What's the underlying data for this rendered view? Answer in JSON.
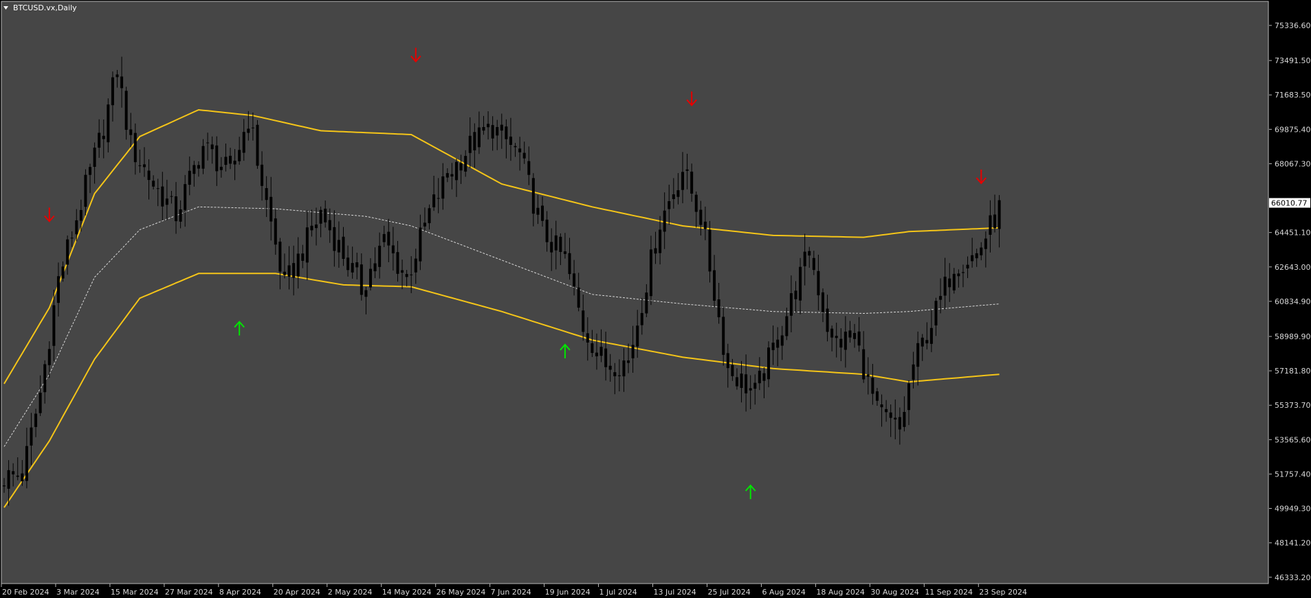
{
  "window": {
    "title": "BTCUSD.vx,Daily",
    "colors": {
      "background": "#000000",
      "plot_area": "#464646",
      "axis_text": "#d8d8d8",
      "candle": "#000000",
      "band_line": "#f5c518",
      "middle_line": "#d8d8d8",
      "buy_arrow": "#00e600",
      "sell_arrow": "#e60000",
      "current_price_tag": "#ffffff"
    }
  },
  "chart_data": {
    "type": "candlestick",
    "symbol": "BTCUSD.vx",
    "timeframe": "Daily",
    "current_price": "66010.77",
    "price_axis_ticks": [
      "75336.60",
      "73491.50",
      "71683.50",
      "69875.40",
      "68067.30",
      "64451.10",
      "62643.00",
      "60834.90",
      "58989.90",
      "57181.80",
      "55373.70",
      "53565.60",
      "51757.40",
      "49949.30",
      "48141.20",
      "46333.20"
    ],
    "time_axis_labels": [
      "20 Feb 2024",
      "3 Mar 2024",
      "15 Mar 2024",
      "27 Mar 2024",
      "8 Apr 2024",
      "20 Apr 2024",
      "2 May 2024",
      "14 May 2024",
      "26 May 2024",
      "7 Jun 2024",
      "19 Jun 2024",
      "1 Jul 2024",
      "13 Jul 2024",
      "25 Jul 2024",
      "6 Aug 2024",
      "18 Aug 2024",
      "30 Aug 2024",
      "11 Sep 2024",
      "23 Sep 2024"
    ],
    "ylim": [
      46000,
      76600
    ],
    "bar_count": 221,
    "close_anchors": [
      [
        0,
        51600
      ],
      [
        4,
        51700
      ],
      [
        8,
        56000
      ],
      [
        12,
        62000
      ],
      [
        18,
        66800
      ],
      [
        22,
        70000
      ],
      [
        25,
        73000
      ],
      [
        28,
        69000
      ],
      [
        33,
        67000
      ],
      [
        38,
        65400
      ],
      [
        44,
        69000
      ],
      [
        50,
        67500
      ],
      [
        54,
        70500
      ],
      [
        58,
        66000
      ],
      [
        62,
        61600
      ],
      [
        70,
        65500
      ],
      [
        75,
        63300
      ],
      [
        79,
        61500
      ],
      [
        84,
        64000
      ],
      [
        89,
        62000
      ],
      [
        94,
        65500
      ],
      [
        98,
        67400
      ],
      [
        103,
        69000
      ],
      [
        108,
        70000
      ],
      [
        114,
        68500
      ],
      [
        119,
        64500
      ],
      [
        124,
        63000
      ],
      [
        128,
        59500
      ],
      [
        133,
        57500
      ],
      [
        138,
        57700
      ],
      [
        145,
        65000
      ],
      [
        150,
        67800
      ],
      [
        154,
        65300
      ],
      [
        160,
        57300
      ],
      [
        166,
        56000
      ],
      [
        172,
        59500
      ],
      [
        178,
        63500
      ],
      [
        183,
        58600
      ],
      [
        188,
        59000
      ],
      [
        193,
        55000
      ],
      [
        198,
        54000
      ],
      [
        201,
        57500
      ],
      [
        206,
        60300
      ],
      [
        210,
        62800
      ],
      [
        215,
        63300
      ],
      [
        220,
        65700
      ]
    ],
    "indicators": [
      {
        "type": "band",
        "role": "upper",
        "anchors": [
          [
            0,
            56500
          ],
          [
            10,
            60500
          ],
          [
            20,
            66500
          ],
          [
            30,
            69500
          ],
          [
            43,
            70900
          ],
          [
            55,
            70600
          ],
          [
            70,
            69800
          ],
          [
            90,
            69600
          ],
          [
            110,
            67000
          ],
          [
            130,
            65800
          ],
          [
            150,
            64800
          ],
          [
            170,
            64300
          ],
          [
            190,
            64200
          ],
          [
            200,
            64500
          ],
          [
            220,
            64700
          ]
        ]
      },
      {
        "type": "band",
        "role": "lower",
        "anchors": [
          [
            0,
            50000
          ],
          [
            10,
            53500
          ],
          [
            20,
            57800
          ],
          [
            30,
            61000
          ],
          [
            43,
            62300
          ],
          [
            60,
            62300
          ],
          [
            75,
            61700
          ],
          [
            90,
            61600
          ],
          [
            110,
            60300
          ],
          [
            130,
            58800
          ],
          [
            150,
            57900
          ],
          [
            170,
            57300
          ],
          [
            190,
            57000
          ],
          [
            200,
            56600
          ],
          [
            220,
            57000
          ]
        ]
      },
      {
        "type": "middle",
        "anchors": [
          [
            0,
            53200
          ],
          [
            10,
            57000
          ],
          [
            20,
            62100
          ],
          [
            30,
            64600
          ],
          [
            43,
            65800
          ],
          [
            60,
            65700
          ],
          [
            80,
            65300
          ],
          [
            90,
            64800
          ],
          [
            110,
            63000
          ],
          [
            130,
            61200
          ],
          [
            150,
            60700
          ],
          [
            170,
            60300
          ],
          [
            190,
            60200
          ],
          [
            200,
            60300
          ],
          [
            220,
            60700
          ]
        ]
      }
    ],
    "signals": [
      {
        "type": "sell",
        "bar": 10,
        "price": 65400
      },
      {
        "type": "buy",
        "bar": 52,
        "price": 59400
      },
      {
        "type": "sell",
        "bar": 91,
        "price": 73800
      },
      {
        "type": "buy",
        "bar": 124,
        "price": 58200
      },
      {
        "type": "sell",
        "bar": 152,
        "price": 71500
      },
      {
        "type": "buy",
        "bar": 165,
        "price": 50800
      },
      {
        "type": "sell",
        "bar": 216,
        "price": 67400
      }
    ]
  }
}
